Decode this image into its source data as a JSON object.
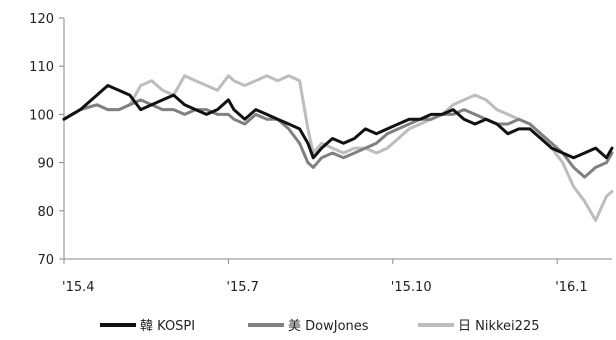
{
  "chart_data": {
    "type": "line",
    "title": "",
    "xlabel": "",
    "ylabel": "",
    "ylim": [
      70,
      120
    ],
    "y_ticks": [
      70,
      80,
      90,
      100,
      110,
      120
    ],
    "x_range": [
      0,
      10
    ],
    "x_ticks": [
      {
        "label": "'15.4",
        "x": 0
      },
      {
        "label": "'15.7",
        "x": 3
      },
      {
        "label": "'15.10",
        "x": 6
      },
      {
        "label": "'16.1",
        "x": 9
      }
    ],
    "grid": false,
    "legend": "bottom",
    "series": [
      {
        "name": "韓 KOSPI",
        "color": "#111111",
        "points": [
          [
            0,
            99
          ],
          [
            0.3,
            101
          ],
          [
            0.6,
            104
          ],
          [
            0.8,
            106
          ],
          [
            1.0,
            105
          ],
          [
            1.2,
            104
          ],
          [
            1.4,
            101
          ],
          [
            1.6,
            102
          ],
          [
            1.8,
            103
          ],
          [
            2.0,
            104
          ],
          [
            2.2,
            102
          ],
          [
            2.4,
            101
          ],
          [
            2.6,
            100
          ],
          [
            2.8,
            101
          ],
          [
            3.0,
            103
          ],
          [
            3.1,
            101
          ],
          [
            3.3,
            99
          ],
          [
            3.5,
            101
          ],
          [
            3.7,
            100
          ],
          [
            3.9,
            99
          ],
          [
            4.1,
            98
          ],
          [
            4.3,
            97
          ],
          [
            4.45,
            94
          ],
          [
            4.55,
            91
          ],
          [
            4.7,
            93
          ],
          [
            4.9,
            95
          ],
          [
            5.1,
            94
          ],
          [
            5.3,
            95
          ],
          [
            5.5,
            97
          ],
          [
            5.7,
            96
          ],
          [
            5.9,
            97
          ],
          [
            6.1,
            98
          ],
          [
            6.3,
            99
          ],
          [
            6.5,
            99
          ],
          [
            6.7,
            100
          ],
          [
            6.9,
            100
          ],
          [
            7.1,
            101
          ],
          [
            7.3,
            99
          ],
          [
            7.5,
            98
          ],
          [
            7.7,
            99
          ],
          [
            7.9,
            98
          ],
          [
            8.1,
            96
          ],
          [
            8.3,
            97
          ],
          [
            8.5,
            97
          ],
          [
            8.7,
            95
          ],
          [
            8.9,
            93
          ],
          [
            9.1,
            92
          ],
          [
            9.3,
            91
          ],
          [
            9.5,
            92
          ],
          [
            9.7,
            93
          ],
          [
            9.9,
            91
          ],
          [
            10.0,
            93
          ]
        ]
      },
      {
        "name": "美 DowJones",
        "color": "#808080",
        "points": [
          [
            0,
            99
          ],
          [
            0.3,
            101
          ],
          [
            0.6,
            102
          ],
          [
            0.8,
            101
          ],
          [
            1.0,
            101
          ],
          [
            1.2,
            102
          ],
          [
            1.4,
            103
          ],
          [
            1.6,
            102
          ],
          [
            1.8,
            101
          ],
          [
            2.0,
            101
          ],
          [
            2.2,
            100
          ],
          [
            2.4,
            101
          ],
          [
            2.6,
            101
          ],
          [
            2.8,
            100
          ],
          [
            3.0,
            100
          ],
          [
            3.1,
            99
          ],
          [
            3.3,
            98
          ],
          [
            3.5,
            100
          ],
          [
            3.7,
            99
          ],
          [
            3.9,
            99
          ],
          [
            4.1,
            97
          ],
          [
            4.3,
            94
          ],
          [
            4.45,
            90
          ],
          [
            4.55,
            89
          ],
          [
            4.7,
            91
          ],
          [
            4.9,
            92
          ],
          [
            5.1,
            91
          ],
          [
            5.3,
            92
          ],
          [
            5.5,
            93
          ],
          [
            5.7,
            94
          ],
          [
            5.9,
            96
          ],
          [
            6.1,
            97
          ],
          [
            6.3,
            98
          ],
          [
            6.5,
            99
          ],
          [
            6.7,
            99
          ],
          [
            6.9,
            100
          ],
          [
            7.1,
            100
          ],
          [
            7.3,
            101
          ],
          [
            7.5,
            100
          ],
          [
            7.7,
            99
          ],
          [
            7.9,
            98
          ],
          [
            8.1,
            98
          ],
          [
            8.3,
            99
          ],
          [
            8.5,
            98
          ],
          [
            8.7,
            96
          ],
          [
            8.9,
            94
          ],
          [
            9.1,
            92
          ],
          [
            9.3,
            89
          ],
          [
            9.5,
            87
          ],
          [
            9.7,
            89
          ],
          [
            9.9,
            90
          ],
          [
            10.0,
            92
          ]
        ]
      },
      {
        "name": "日 Nikkei225",
        "color": "#bdbdbd",
        "points": [
          [
            0,
            99
          ],
          [
            0.3,
            101
          ],
          [
            0.6,
            102
          ],
          [
            0.8,
            101
          ],
          [
            1.0,
            101
          ],
          [
            1.2,
            102
          ],
          [
            1.4,
            106
          ],
          [
            1.6,
            107
          ],
          [
            1.8,
            105
          ],
          [
            2.0,
            104
          ],
          [
            2.2,
            108
          ],
          [
            2.4,
            107
          ],
          [
            2.6,
            106
          ],
          [
            2.8,
            105
          ],
          [
            3.0,
            108
          ],
          [
            3.1,
            107
          ],
          [
            3.3,
            106
          ],
          [
            3.5,
            107
          ],
          [
            3.7,
            108
          ],
          [
            3.9,
            107
          ],
          [
            4.1,
            108
          ],
          [
            4.3,
            107
          ],
          [
            4.45,
            97
          ],
          [
            4.55,
            92
          ],
          [
            4.7,
            94
          ],
          [
            4.9,
            93
          ],
          [
            5.1,
            92
          ],
          [
            5.3,
            93
          ],
          [
            5.5,
            93
          ],
          [
            5.7,
            92
          ],
          [
            5.9,
            93
          ],
          [
            6.1,
            95
          ],
          [
            6.3,
            97
          ],
          [
            6.5,
            98
          ],
          [
            6.7,
            99
          ],
          [
            6.9,
            100
          ],
          [
            7.1,
            102
          ],
          [
            7.3,
            103
          ],
          [
            7.5,
            104
          ],
          [
            7.7,
            103
          ],
          [
            7.9,
            101
          ],
          [
            8.1,
            100
          ],
          [
            8.3,
            99
          ],
          [
            8.5,
            98
          ],
          [
            8.7,
            96
          ],
          [
            8.9,
            93
          ],
          [
            9.1,
            90
          ],
          [
            9.3,
            85
          ],
          [
            9.5,
            82
          ],
          [
            9.7,
            78
          ],
          [
            9.9,
            83
          ],
          [
            10.0,
            84
          ]
        ]
      }
    ]
  }
}
